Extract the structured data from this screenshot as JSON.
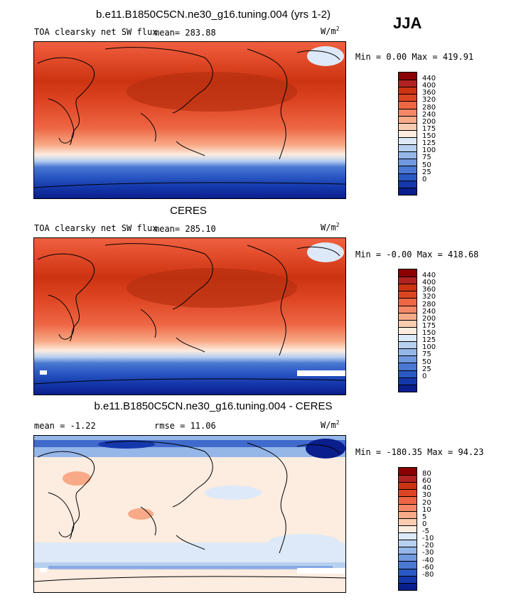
{
  "season": "JJA",
  "panels": [
    {
      "title": "b.e11.B1850C5CN.ne30_g16.tuning.004 (yrs 1-2)",
      "variable": "TOA clearsky net SW flux",
      "mean_label": "mean= 283.88",
      "units": "W/m",
      "units_sup": "2",
      "minmax": "Min =   0.00 Max = 419.91",
      "colorbar": {
        "colors": [
          "#8b0000",
          "#b22222",
          "#cc3311",
          "#dd4422",
          "#ee6644",
          "#f48866",
          "#f8aa88",
          "#fbccb0",
          "#fdece0",
          "#dde9f8",
          "#b8d0f0",
          "#94b6e8",
          "#6f98de",
          "#4a78d2",
          "#2a58c4",
          "#1438ac",
          "#0a1e8c"
        ],
        "ticks": [
          "440",
          "400",
          "360",
          "320",
          "280",
          "240",
          "200",
          "175",
          "150",
          "125",
          "100",
          "75",
          "50",
          "25",
          "0"
        ]
      }
    },
    {
      "title": "CERES",
      "variable": "TOA clearsky net SW flux",
      "mean_label": "mean= 285.10",
      "units": "W/m",
      "units_sup": "2",
      "minmax": "Min =  -0.00 Max = 418.68",
      "colorbar": {
        "colors": [
          "#8b0000",
          "#b22222",
          "#cc3311",
          "#dd4422",
          "#ee6644",
          "#f48866",
          "#f8aa88",
          "#fbccb0",
          "#fdece0",
          "#dde9f8",
          "#b8d0f0",
          "#94b6e8",
          "#6f98de",
          "#4a78d2",
          "#2a58c4",
          "#1438ac",
          "#0a1e8c"
        ],
        "ticks": [
          "440",
          "400",
          "360",
          "320",
          "280",
          "240",
          "200",
          "175",
          "150",
          "125",
          "100",
          "75",
          "50",
          "25",
          "0"
        ]
      }
    },
    {
      "title": "b.e11.B1850C5CN.ne30_g16.tuning.004 - CERES",
      "mean_label": "mean =  -1.22",
      "rmse_label": "rmse =   11.06",
      "units": "W/m",
      "units_sup": "2",
      "minmax": "Min = -180.35 Max =  94.23",
      "colorbar": {
        "colors": [
          "#8b0000",
          "#b22222",
          "#cc3311",
          "#dd4422",
          "#ee6644",
          "#f48866",
          "#f8aa88",
          "#fbccb0",
          "#fdece0",
          "#dde9f8",
          "#b8d0f0",
          "#94b6e8",
          "#6f98de",
          "#4a78d2",
          "#2a58c4",
          "#1438ac",
          "#0a1e8c"
        ],
        "ticks": [
          "80",
          "60",
          "40",
          "30",
          "20",
          "10",
          "5",
          "0",
          "-5",
          "-10",
          "-20",
          "-30",
          "-40",
          "-60",
          "-80"
        ]
      }
    }
  ]
}
